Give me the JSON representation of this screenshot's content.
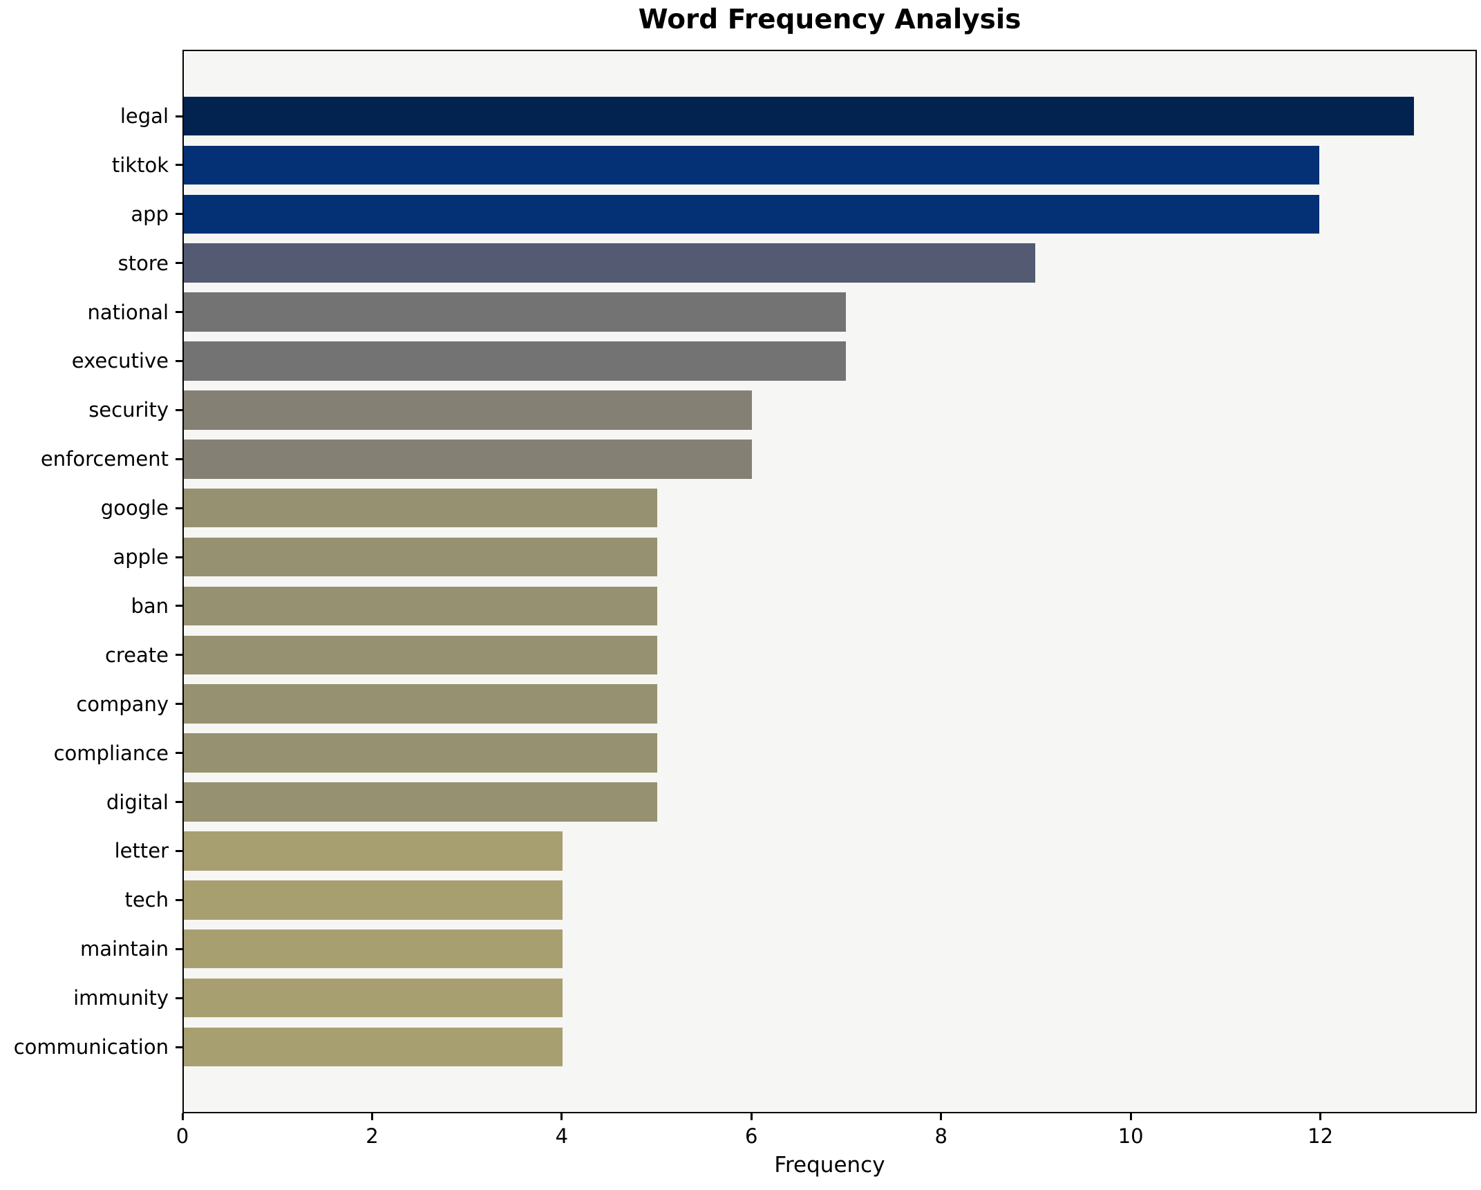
{
  "chart_data": {
    "type": "bar",
    "orientation": "horizontal",
    "title": "Word Frequency Analysis",
    "xlabel": "Frequency",
    "ylabel": "",
    "categories": [
      "legal",
      "tiktok",
      "app",
      "store",
      "national",
      "executive",
      "security",
      "enforcement",
      "google",
      "apple",
      "ban",
      "create",
      "company",
      "compliance",
      "digital",
      "letter",
      "tech",
      "maintain",
      "immunity",
      "communication"
    ],
    "values": [
      13,
      12,
      12,
      9,
      7,
      7,
      6,
      6,
      5,
      5,
      5,
      5,
      5,
      5,
      5,
      4,
      4,
      4,
      4,
      4
    ],
    "bar_colors": [
      "#02234f",
      "#043176",
      "#043176",
      "#545a72",
      "#737373",
      "#737373",
      "#848074",
      "#848074",
      "#969170",
      "#969170",
      "#969170",
      "#969170",
      "#969170",
      "#969170",
      "#969170",
      "#a89f71",
      "#a89f71",
      "#a89f71",
      "#a89f71",
      "#a89f71"
    ],
    "xlim": [
      0,
      13.65
    ],
    "xticks": [
      0,
      2,
      4,
      6,
      8,
      10,
      12
    ],
    "grid": false,
    "legend": null,
    "plot_background": "#f6f6f4",
    "spine_color": "#000000",
    "title_color": "#000000",
    "tick_color": "#000000"
  }
}
